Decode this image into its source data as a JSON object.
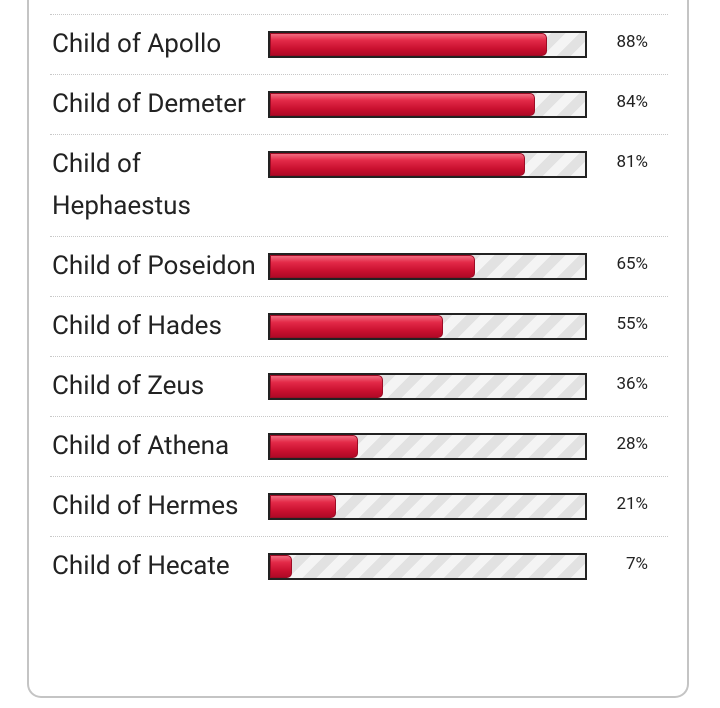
{
  "results": {
    "rows": [
      {
        "label": "Child of Apollo",
        "value": 88,
        "percent": "88%"
      },
      {
        "label": "Child of Demeter",
        "value": 84,
        "percent": "84%"
      },
      {
        "label": "Child of Hephaestus",
        "value": 81,
        "percent": "81%"
      },
      {
        "label": "Child of Poseidon",
        "value": 65,
        "percent": "65%"
      },
      {
        "label": "Child of Hades",
        "value": 55,
        "percent": "55%"
      },
      {
        "label": "Child of Zeus",
        "value": 36,
        "percent": "36%"
      },
      {
        "label": "Child of Athena",
        "value": 28,
        "percent": "28%"
      },
      {
        "label": "Child of Hermes",
        "value": 21,
        "percent": "21%"
      },
      {
        "label": "Child of Hecate",
        "value": 7,
        "percent": "7%"
      }
    ]
  }
}
